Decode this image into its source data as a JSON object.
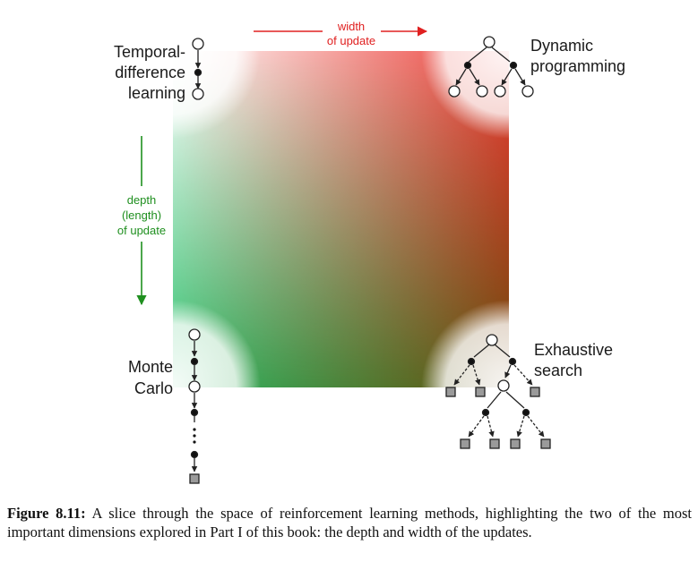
{
  "labels": {
    "td": [
      "Temporal-",
      "difference",
      "learning"
    ],
    "dp": [
      "Dynamic",
      "programming"
    ],
    "mc": [
      "Monte",
      "Carlo"
    ],
    "es": [
      "Exhaustive",
      "search"
    ]
  },
  "axes": {
    "width": [
      "width",
      "of update"
    ],
    "depth": [
      "depth",
      "(length)",
      "of update"
    ]
  },
  "colors": {
    "width_axis": "#e02020",
    "depth_axis": "#1f8f1f",
    "corner_td": "#ffffff",
    "corner_dp": "#ec3b35",
    "corner_mc": "#2bbf6a",
    "corner_es": "#6b4a0a",
    "terminal_fill": "#9a9a9a"
  },
  "caption": {
    "figure_label": "Figure 8.11:",
    "text": "A slice through the space of reinforcement learning methods, highlighting the two of the most important dimensions explored in Part I of this book: the depth and width of the updates."
  }
}
